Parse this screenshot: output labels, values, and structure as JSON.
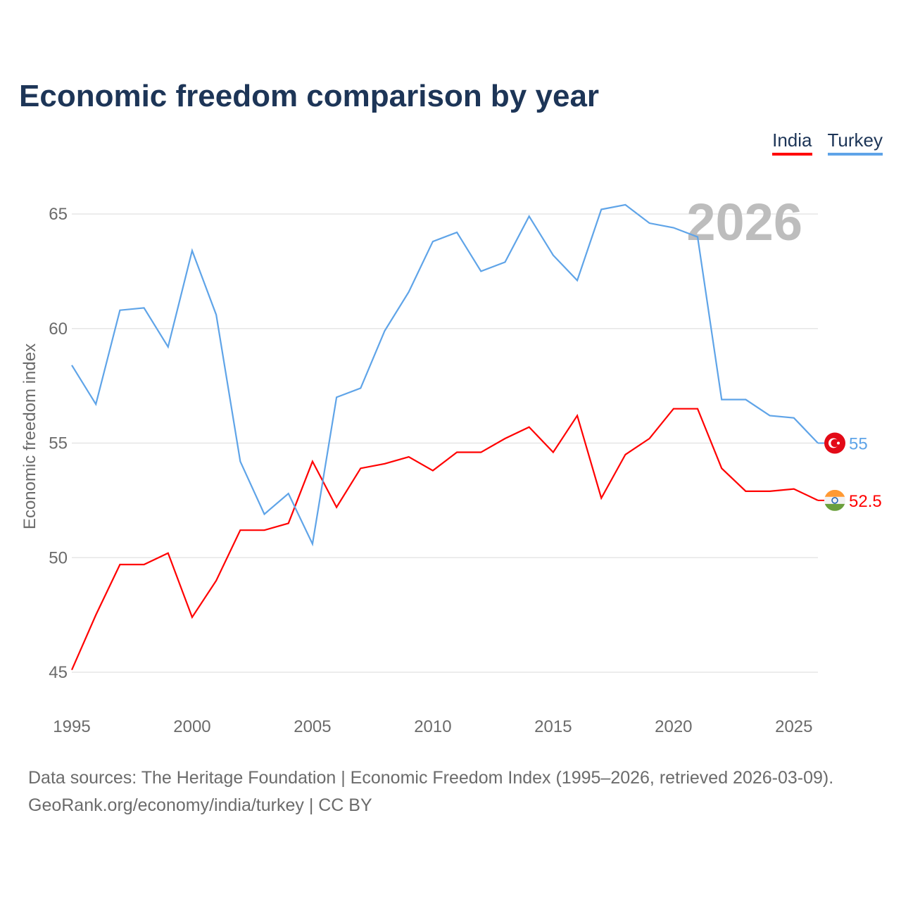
{
  "chart_data": {
    "type": "line",
    "title": "Economic freedom comparison by year",
    "xlabel": "",
    "ylabel": "Economic freedom index",
    "xlim": [
      1995,
      2026
    ],
    "ylim": [
      45,
      65
    ],
    "grid": true,
    "legend_placement": "top-right",
    "year_label": "2026",
    "x_ticks": [
      1995,
      2000,
      2005,
      2010,
      2015,
      2020,
      2025
    ],
    "y_ticks": [
      45,
      50,
      55,
      60,
      65
    ],
    "x": [
      1995,
      1996,
      1997,
      1998,
      1999,
      2000,
      2001,
      2002,
      2003,
      2004,
      2005,
      2006,
      2007,
      2008,
      2009,
      2010,
      2011,
      2012,
      2013,
      2014,
      2015,
      2016,
      2017,
      2018,
      2019,
      2020,
      2021,
      2022,
      2023,
      2024,
      2025,
      2026
    ],
    "series": [
      {
        "name": "India",
        "color": "#ff0000",
        "end_label": "52.5",
        "flag": "india-flag",
        "values": [
          45.1,
          47.5,
          49.7,
          49.7,
          50.2,
          47.4,
          49.0,
          51.2,
          51.2,
          51.5,
          54.2,
          52.2,
          53.9,
          54.1,
          54.4,
          53.8,
          54.6,
          54.6,
          55.2,
          55.7,
          54.6,
          56.2,
          52.6,
          54.5,
          55.2,
          56.5,
          56.5,
          53.9,
          52.9,
          52.9,
          53.0,
          52.5
        ]
      },
      {
        "name": "Turkey",
        "color": "#5fa4e8",
        "end_label": "55",
        "flag": "turkey-flag",
        "values": [
          58.4,
          56.7,
          60.8,
          60.9,
          59.2,
          63.4,
          60.6,
          54.2,
          51.9,
          52.8,
          50.6,
          57.0,
          57.4,
          59.9,
          61.6,
          63.8,
          64.2,
          62.5,
          62.9,
          64.9,
          63.2,
          62.1,
          65.2,
          65.4,
          64.6,
          64.4,
          64.0,
          56.9,
          56.9,
          56.2,
          56.1,
          55.0
        ]
      }
    ]
  },
  "footer": {
    "line1": "Data sources: The Heritage Foundation | Economic Freedom Index (1995–2026, retrieved 2026-03-09).",
    "line2": "GeoRank.org/economy/india/turkey | CC BY"
  }
}
